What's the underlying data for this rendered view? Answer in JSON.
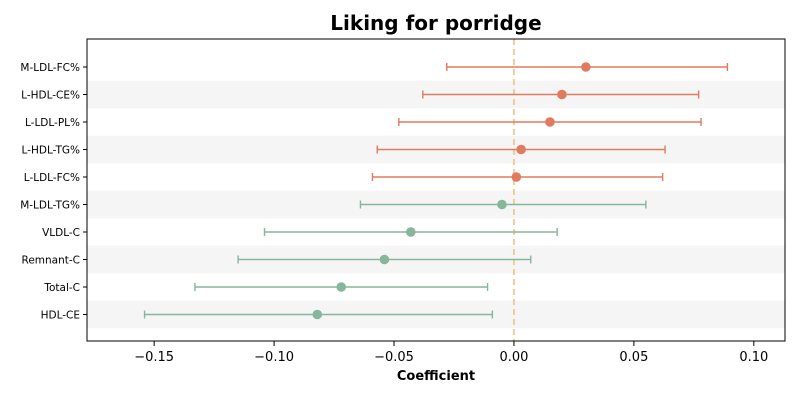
{
  "chart_data": {
    "type": "forest",
    "title": "Liking for porridge",
    "xlabel": "Coefficient",
    "ylabel": "",
    "xlim": [
      -0.178,
      0.113
    ],
    "xticks": [
      -0.15,
      -0.1,
      -0.05,
      0.0,
      0.05,
      0.1
    ],
    "xtick_labels": [
      "−0.15",
      "−0.10",
      "−0.05",
      "0.00",
      "0.05",
      "0.10"
    ],
    "reference_line": 0.0,
    "row_banding": true,
    "colors": {
      "positive": "#e07b5f",
      "negative": "#86b69c",
      "reference": "#f0c27e",
      "band": "#f5f5f5"
    },
    "points": [
      {
        "label": "M-LDL-FC%",
        "estimate": 0.03,
        "ci_low": -0.028,
        "ci_high": 0.089
      },
      {
        "label": "L-HDL-CE%",
        "estimate": 0.02,
        "ci_low": -0.038,
        "ci_high": 0.077
      },
      {
        "label": "L-LDL-PL%",
        "estimate": 0.015,
        "ci_low": -0.048,
        "ci_high": 0.078
      },
      {
        "label": "L-HDL-TG%",
        "estimate": 0.003,
        "ci_low": -0.057,
        "ci_high": 0.063
      },
      {
        "label": "L-LDL-FC%",
        "estimate": 0.001,
        "ci_low": -0.059,
        "ci_high": 0.062
      },
      {
        "label": "M-LDL-TG%",
        "estimate": -0.005,
        "ci_low": -0.064,
        "ci_high": 0.055
      },
      {
        "label": "VLDL-C",
        "estimate": -0.043,
        "ci_low": -0.104,
        "ci_high": 0.018
      },
      {
        "label": "Remnant-C",
        "estimate": -0.054,
        "ci_low": -0.115,
        "ci_high": 0.007
      },
      {
        "label": "Total-C",
        "estimate": -0.072,
        "ci_low": -0.133,
        "ci_high": -0.011
      },
      {
        "label": "HDL-CE",
        "estimate": -0.082,
        "ci_low": -0.154,
        "ci_high": -0.009
      }
    ]
  }
}
